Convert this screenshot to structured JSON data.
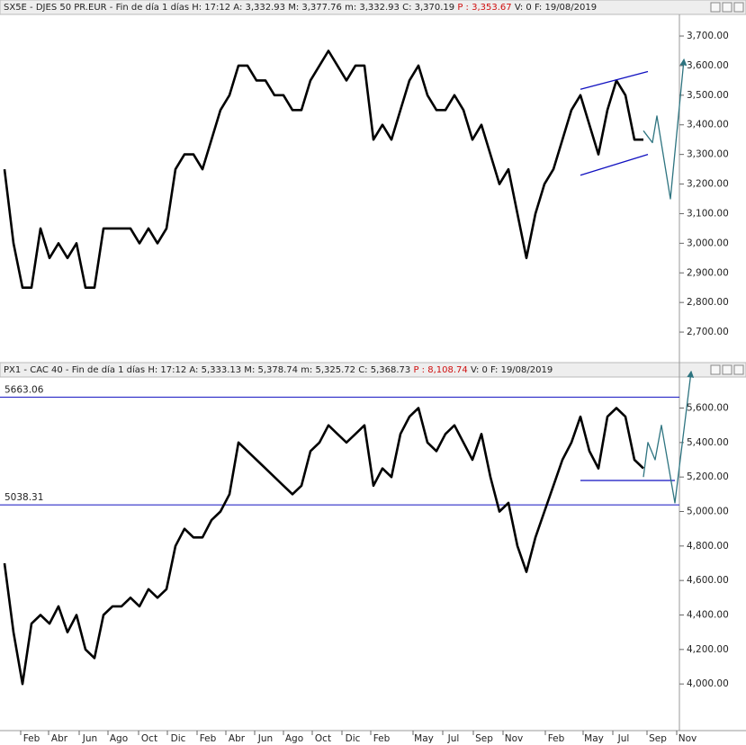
{
  "chart_data": [
    {
      "type": "line",
      "header": {
        "left": "SX5E - DJES 50 PR.EUR - Fin de día 1 días  H: 17:12  A: 3,332.93  M: 3,377.76  m: 3,332.93  C: 3,370.19",
        "p": "P : 3,353.67",
        "right": "V: 0  F: 19/08/2019"
      },
      "ylim": [
        2606,
        3770
      ],
      "xlim": [
        0,
        77
      ],
      "yticks": [
        {
          "value": 2700,
          "label": "2,700.00"
        },
        {
          "value": 2800,
          "label": "2,800.00"
        },
        {
          "value": 2900,
          "label": "2,900.00"
        },
        {
          "value": 3000,
          "label": "3,000.00"
        },
        {
          "value": 3100,
          "label": "3,100.00"
        },
        {
          "value": 3200,
          "label": "3,200.00"
        },
        {
          "value": 3300,
          "label": "3,300.00"
        },
        {
          "value": 3400,
          "label": "3,400.00"
        },
        {
          "value": 3500,
          "label": "3,500.00"
        },
        {
          "value": 3600,
          "label": "3,600.00"
        },
        {
          "value": 3700,
          "label": "3,700.00"
        }
      ],
      "series": [
        {
          "role": "price",
          "color": "#000000",
          "x": [
            0.5,
            1.5,
            2.5,
            3.5,
            4.5,
            5.5,
            6.5,
            7.5,
            8.5,
            9.5,
            10.5,
            11.5,
            12.5,
            13.5,
            14.5,
            15.5,
            16.5,
            17.5,
            18.5,
            19.5,
            20.5,
            21.5,
            22.5,
            23.5,
            24.5,
            25.5,
            26.5,
            27.5,
            28.5,
            29.5,
            30.5,
            31.5,
            32.5,
            33.5,
            34.5,
            35.5,
            36.5,
            37.5,
            38.5,
            39.5,
            40.5,
            41.5,
            42.5,
            43.5,
            44.5,
            45.5,
            46.5,
            47.5,
            48.5,
            49.5,
            50.5,
            51.5,
            52.5,
            53.5,
            54.5,
            55.5,
            56.5,
            57.5,
            58.5,
            59.5,
            60.5,
            61.5,
            62.5,
            63.5,
            64.5,
            65.5,
            66.5,
            67.5,
            68.5,
            69.5,
            70.5,
            71.5
          ],
          "values": [
            3250,
            3000,
            2850,
            2850,
            3050,
            2950,
            3000,
            2950,
            3000,
            2850,
            2850,
            3050,
            3050,
            3050,
            3050,
            3000,
            3050,
            3000,
            3050,
            3250,
            3300,
            3300,
            3250,
            3350,
            3450,
            3500,
            3600,
            3600,
            3550,
            3550,
            3500,
            3500,
            3450,
            3450,
            3550,
            3600,
            3650,
            3600,
            3550,
            3600,
            3600,
            3350,
            3400,
            3350,
            3450,
            3550,
            3600,
            3500,
            3450,
            3450,
            3500,
            3450,
            3350,
            3400,
            3300,
            3200,
            3250,
            3100,
            2950,
            3100,
            3200,
            3250,
            3350,
            3450,
            3500,
            3400,
            3300,
            3450,
            3550,
            3500,
            3350,
            3350
          ]
        },
        {
          "role": "channel",
          "color": "#1010c0",
          "x": [
            64.5,
            72
          ],
          "values": [
            3520,
            3580
          ]
        },
        {
          "role": "channel",
          "color": "#1010c0",
          "x": [
            64.5,
            72
          ],
          "values": [
            3230,
            3300
          ]
        },
        {
          "role": "projection",
          "color": "#2e7480",
          "x": [
            71.5,
            72.5,
            73,
            74.5,
            76
          ],
          "values": [
            3380,
            3340,
            3430,
            3150,
            3620
          ]
        }
      ]
    },
    {
      "type": "line",
      "header": {
        "left": "PX1 - CAC 40 - Fin de día 1 días  H: 17:12  A: 5,333.13  M: 5,378.74  m: 5,325.72  C: 5,368.73",
        "p": "P : 8,108.74",
        "right": "V: 0  F: 19/08/2019"
      },
      "ylim": [
        3740,
        5780
      ],
      "xlim": [
        0,
        77
      ],
      "yticks": [
        {
          "value": 4000,
          "label": "4,000.00"
        },
        {
          "value": 4200,
          "label": "4,200.00"
        },
        {
          "value": 4400,
          "label": "4,400.00"
        },
        {
          "value": 4600,
          "label": "4,600.00"
        },
        {
          "value": 4800,
          "label": "4,800.00"
        },
        {
          "value": 5000,
          "label": "5,000.00"
        },
        {
          "value": 5200,
          "label": "5,200.00"
        },
        {
          "value": 5400,
          "label": "5,400.00"
        },
        {
          "value": 5600,
          "label": "5,600.00"
        }
      ],
      "levels": [
        5663.06,
        5038.31
      ],
      "xticks": [
        {
          "value": 3.5,
          "label": "Feb"
        },
        {
          "value": 6.6,
          "label": "Abr"
        },
        {
          "value": 10,
          "label": "Jun"
        },
        {
          "value": 13.2,
          "label": "Ago"
        },
        {
          "value": 16.6,
          "label": "Oct"
        },
        {
          "value": 19.8,
          "label": "Dic"
        },
        {
          "value": 23.1,
          "label": "Feb"
        },
        {
          "value": 26.3,
          "label": "Abr"
        },
        {
          "value": 29.5,
          "label": "Jun"
        },
        {
          "value": 32.7,
          "label": "Ago"
        },
        {
          "value": 35.9,
          "label": "Oct"
        },
        {
          "value": 39.2,
          "label": "Dic"
        },
        {
          "value": 42.4,
          "label": "Feb"
        },
        {
          "value": 47.1,
          "label": "May"
        },
        {
          "value": 50.4,
          "label": "Jul"
        },
        {
          "value": 53.8,
          "label": "Sep"
        },
        {
          "value": 57.1,
          "label": "Nov"
        },
        {
          "value": 61.8,
          "label": "Feb"
        },
        {
          "value": 66,
          "label": "May"
        },
        {
          "value": 69.3,
          "label": "Jul"
        },
        {
          "value": 73.1,
          "label": "Sep"
        },
        {
          "value": 76.4,
          "label": "Nov"
        }
      ],
      "series": [
        {
          "role": "price",
          "color": "#000000",
          "x": [
            0.5,
            1.5,
            2.5,
            3.5,
            4.5,
            5.5,
            6.5,
            7.5,
            8.5,
            9.5,
            10.5,
            11.5,
            12.5,
            13.5,
            14.5,
            15.5,
            16.5,
            17.5,
            18.5,
            19.5,
            20.5,
            21.5,
            22.5,
            23.5,
            24.5,
            25.5,
            26.5,
            27.5,
            28.5,
            29.5,
            30.5,
            31.5,
            32.5,
            33.5,
            34.5,
            35.5,
            36.5,
            37.5,
            38.5,
            39.5,
            40.5,
            41.5,
            42.5,
            43.5,
            44.5,
            45.5,
            46.5,
            47.5,
            48.5,
            49.5,
            50.5,
            51.5,
            52.5,
            53.5,
            54.5,
            55.5,
            56.5,
            57.5,
            58.5,
            59.5,
            60.5,
            61.5,
            62.5,
            63.5,
            64.5,
            65.5,
            66.5,
            67.5,
            68.5,
            69.5,
            70.5,
            71.5
          ],
          "values": [
            4700,
            4300,
            4000,
            4350,
            4400,
            4350,
            4450,
            4300,
            4400,
            4200,
            4150,
            4400,
            4450,
            4450,
            4500,
            4450,
            4550,
            4500,
            4550,
            4800,
            4900,
            4850,
            4850,
            4950,
            5000,
            5100,
            5400,
            5350,
            5300,
            5250,
            5200,
            5150,
            5100,
            5150,
            5350,
            5400,
            5500,
            5450,
            5400,
            5450,
            5500,
            5150,
            5250,
            5200,
            5450,
            5550,
            5600,
            5400,
            5350,
            5450,
            5500,
            5400,
            5300,
            5450,
            5200,
            5000,
            5050,
            4800,
            4650,
            4850,
            5000,
            5150,
            5300,
            5400,
            5550,
            5350,
            5250,
            5550,
            5600,
            5550,
            5300,
            5250
          ]
        },
        {
          "role": "channel",
          "color": "#1010c0",
          "x": [
            64.5,
            75
          ],
          "values": [
            5180,
            5180
          ]
        },
        {
          "role": "projection",
          "color": "#2e7480",
          "x": [
            71.5,
            72,
            72.8,
            73.5,
            75,
            76.8
          ],
          "values": [
            5200,
            5400,
            5300,
            5500,
            5050,
            5810
          ]
        }
      ]
    }
  ]
}
